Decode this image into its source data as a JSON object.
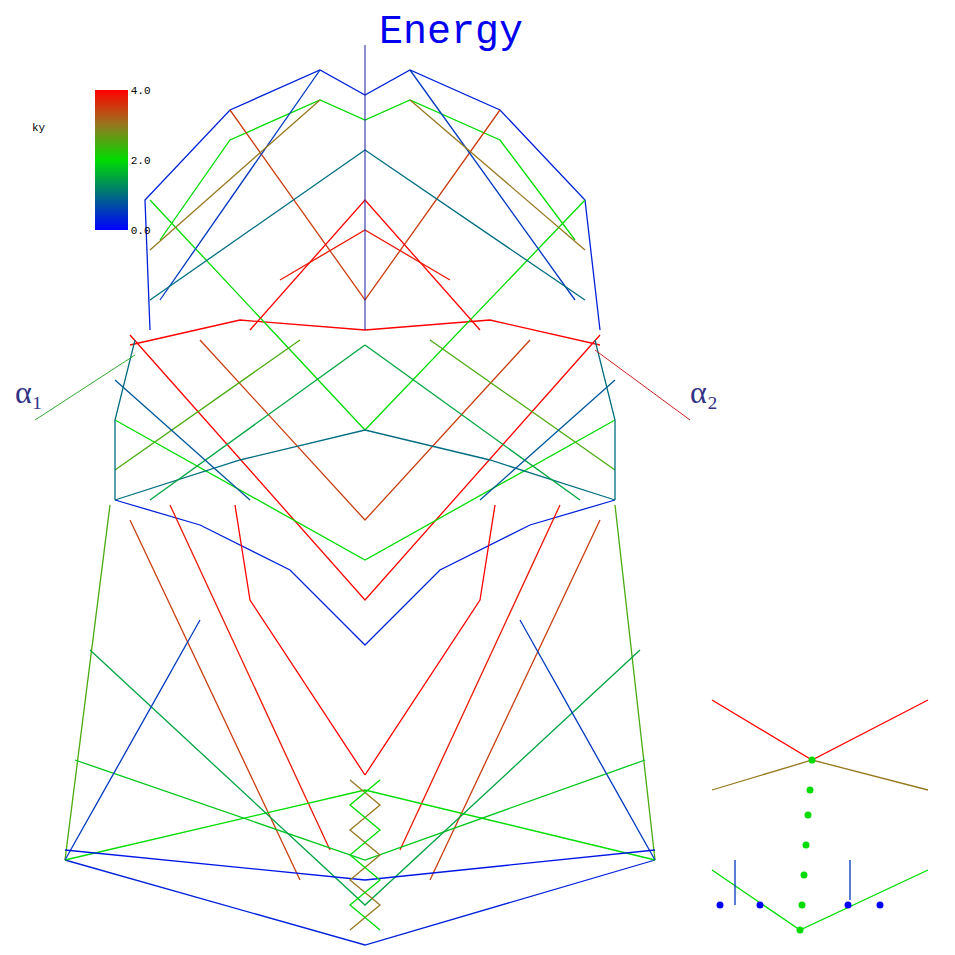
{
  "chart_data": {
    "type": "line",
    "tick_labels": false,
    "xlim": [
      0,
      955
    ],
    "ylim": [
      955,
      0
    ],
    "axes": [
      {
        "label": "Energy",
        "color": "#1a1aa0",
        "x": [
          365,
          365
        ],
        "y": [
          330,
          45
        ]
      },
      {
        "label": "α₁",
        "color": "#33aa33",
        "x": [
          135,
          35
        ],
        "y": [
          355,
          420
        ]
      },
      {
        "label": "α₂",
        "color": "#cc2222",
        "x": [
          595,
          690
        ],
        "y": [
          350,
          420
        ]
      }
    ],
    "colorbar": {
      "title": "ky",
      "range": [
        0,
        4
      ],
      "ticks": [
        {
          "value": 0,
          "label": "0.0"
        },
        {
          "value": 2,
          "label": "2.0"
        },
        {
          "value": 4,
          "label": "4.0"
        }
      ]
    },
    "series": [
      {
        "ky": 0.3,
        "x": [
          150,
          145,
          230,
          320,
          365,
          410,
          500,
          585,
          600
        ],
        "y": [
          330,
          200,
          110,
          70,
          95,
          70,
          110,
          200,
          330
        ]
      },
      {
        "ky": 2,
        "x": [
          160,
          230,
          320,
          365,
          410,
          500,
          575
        ],
        "y": [
          240,
          140,
          100,
          120,
          100,
          140,
          240
        ]
      },
      {
        "ky": 4,
        "x": [
          130,
          240,
          365,
          490,
          600
        ],
        "y": [
          345,
          320,
          330,
          320,
          345
        ]
      },
      {
        "ky": 2,
        "x": [
          150,
          365,
          585
        ],
        "y": [
          200,
          430,
          200
        ]
      },
      {
        "ky": 3.5,
        "x": [
          230,
          365,
          500
        ],
        "y": [
          110,
          300,
          110
        ]
      },
      {
        "ky": 0.5,
        "x": [
          320,
          160
        ],
        "y": [
          70,
          300
        ]
      },
      {
        "ky": 0.5,
        "x": [
          410,
          575
        ],
        "y": [
          70,
          300
        ]
      },
      {
        "ky": 3,
        "x": [
          150,
          320
        ],
        "y": [
          250,
          100
        ]
      },
      {
        "ky": 3,
        "x": [
          585,
          410
        ],
        "y": [
          250,
          100
        ]
      },
      {
        "ky": 1,
        "x": [
          150,
          365,
          585
        ],
        "y": [
          300,
          150,
          300
        ]
      },
      {
        "ky": 4,
        "x": [
          250,
          365,
          480
        ],
        "y": [
          330,
          200,
          330
        ]
      },
      {
        "ky": 3.8,
        "x": [
          280,
          365,
          450
        ],
        "y": [
          280,
          230,
          280
        ]
      },
      {
        "ky": 0.3,
        "x": [
          115,
          200,
          290,
          365,
          440,
          530,
          615
        ],
        "y": [
          500,
          525,
          570,
          645,
          570,
          525,
          500
        ]
      },
      {
        "ky": 4,
        "x": [
          130,
          365,
          600
        ],
        "y": [
          335,
          600,
          335
        ]
      },
      {
        "ky": 2,
        "x": [
          115,
          365,
          615
        ],
        "y": [
          420,
          560,
          420
        ]
      },
      {
        "ky": 3.5,
        "x": [
          200,
          365,
          530
        ],
        "y": [
          340,
          520,
          340
        ]
      },
      {
        "ky": 1,
        "x": [
          115,
          240,
          365,
          490,
          615
        ],
        "y": [
          500,
          460,
          430,
          460,
          500
        ]
      },
      {
        "ky": 2.5,
        "x": [
          115,
          300
        ],
        "y": [
          470,
          340
        ]
      },
      {
        "ky": 2.5,
        "x": [
          615,
          430
        ],
        "y": [
          470,
          340
        ]
      },
      {
        "ky": 1.5,
        "x": [
          150,
          365
        ],
        "y": [
          500,
          345
        ]
      },
      {
        "ky": 1.5,
        "x": [
          580,
          365
        ],
        "y": [
          500,
          345
        ]
      },
      {
        "ky": 0.8,
        "x": [
          115,
          250
        ],
        "y": [
          380,
          500
        ]
      },
      {
        "ky": 0.8,
        "x": [
          615,
          480
        ],
        "y": [
          380,
          500
        ]
      },
      {
        "ky": 1,
        "x": [
          135,
          115,
          115
        ],
        "y": [
          340,
          420,
          500
        ]
      },
      {
        "ky": 1,
        "x": [
          595,
          615,
          615
        ],
        "y": [
          340,
          420,
          500
        ]
      },
      {
        "ky": 0.3,
        "x": [
          65,
          365,
          655
        ],
        "y": [
          860,
          945,
          860
        ]
      },
      {
        "ky": 2.5,
        "x": [
          65,
          110
        ],
        "y": [
          860,
          505
        ]
      },
      {
        "ky": 2.5,
        "x": [
          655,
          615
        ],
        "y": [
          860,
          505
        ]
      },
      {
        "ky": 4,
        "x": [
          365,
          250,
          235
        ],
        "y": [
          775,
          600,
          505
        ]
      },
      {
        "ky": 4,
        "x": [
          365,
          480,
          495
        ],
        "y": [
          775,
          600,
          505
        ]
      },
      {
        "ky": 3.8,
        "x": [
          330,
          170
        ],
        "y": [
          850,
          505
        ]
      },
      {
        "ky": 3.8,
        "x": [
          400,
          560
        ],
        "y": [
          850,
          505
        ]
      },
      {
        "ky": 3.5,
        "x": [
          300,
          130
        ],
        "y": [
          880,
          520
        ]
      },
      {
        "ky": 3.5,
        "x": [
          430,
          600
        ],
        "y": [
          880,
          520
        ]
      },
      {
        "ky": 2,
        "x": [
          65,
          365,
          655
        ],
        "y": [
          860,
          790,
          860
        ]
      },
      {
        "ky": 1.8,
        "x": [
          75,
          365,
          645
        ],
        "y": [
          760,
          860,
          760
        ]
      },
      {
        "ky": 1.5,
        "x": [
          90,
          365,
          640
        ],
        "y": [
          650,
          905,
          650
        ]
      },
      {
        "ky": 0.5,
        "x": [
          65,
          200
        ],
        "y": [
          860,
          620
        ]
      },
      {
        "ky": 0.5,
        "x": [
          655,
          520
        ],
        "y": [
          860,
          620
        ]
      },
      {
        "ky": 0.2,
        "x": [
          65,
          365,
          655
        ],
        "y": [
          850,
          880,
          850
        ]
      },
      {
        "ky": 3,
        "x": [
          350,
          380,
          350,
          380,
          350,
          380,
          350
        ],
        "y": [
          780,
          805,
          830,
          855,
          880,
          905,
          930
        ]
      },
      {
        "ky": 2,
        "x": [
          380,
          350,
          380,
          350,
          380,
          350,
          380
        ],
        "y": [
          780,
          805,
          830,
          855,
          880,
          905,
          930
        ]
      },
      {
        "ky": 2,
        "x": [
          712,
          800,
          928
        ],
        "y": [
          870,
          930,
          870
        ]
      },
      {
        "ky": 4,
        "x": [
          712,
          812,
          928
        ],
        "y": [
          700,
          760,
          700
        ]
      },
      {
        "ky": 3,
        "x": [
          712,
          812,
          928
        ],
        "y": [
          790,
          760,
          790
        ]
      },
      {
        "ky": 0.5,
        "x": [
          735,
          735
        ],
        "y": [
          860,
          905
        ]
      },
      {
        "ky": 0.5,
        "x": [
          850,
          850
        ],
        "y": [
          860,
          900
        ]
      },
      {
        "ky": 2,
        "marker": "circle",
        "line_style": "none",
        "x": [
          812,
          810,
          808,
          806,
          804,
          802,
          800
        ],
        "y": [
          760,
          790,
          815,
          845,
          875,
          905,
          930
        ]
      },
      {
        "ky": 0,
        "marker": "circle",
        "line_style": "none",
        "x": [
          720,
          760,
          848,
          880
        ],
        "y": [
          905,
          905,
          905,
          905
        ]
      }
    ]
  }
}
